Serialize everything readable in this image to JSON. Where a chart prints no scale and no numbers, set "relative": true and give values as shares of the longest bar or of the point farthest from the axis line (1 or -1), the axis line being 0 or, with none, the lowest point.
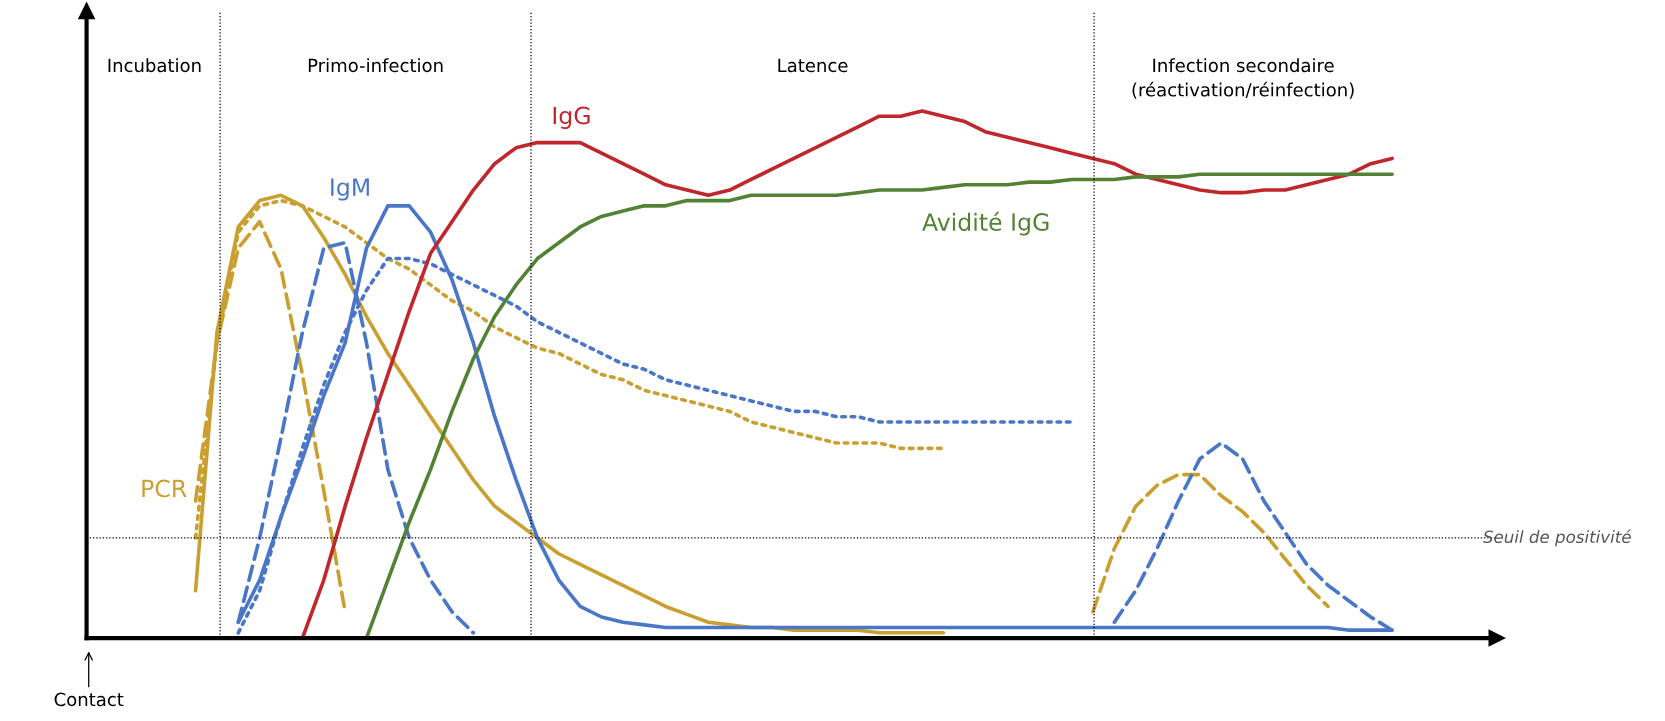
{
  "chart_data": {
    "type": "line",
    "relative": true,
    "grid": false,
    "legend": false,
    "marker": "none",
    "categories": [
      null,
      null,
      null,
      null,
      null,
      null,
      null,
      null,
      null,
      null,
      null,
      null,
      null,
      null,
      null,
      null,
      null,
      null,
      null,
      null,
      null,
      null,
      null,
      null,
      null,
      null,
      null,
      null,
      null,
      null,
      null,
      null,
      null,
      null,
      null,
      null,
      null,
      null,
      null,
      null,
      null,
      null,
      null,
      null,
      null,
      null,
      null,
      null,
      null,
      null,
      null,
      null,
      null,
      null,
      null,
      null,
      null,
      null,
      null,
      null,
      null,
      null
    ],
    "series": [
      {
        "name": "PCR",
        "color": "#c9a030",
        "line_style": "solid",
        "values": [
          null,
          null,
          null,
          null,
          null,
          0.09,
          0.58,
          0.78,
          0.83,
          0.84,
          0.82,
          0.76,
          0.69,
          0.61,
          0.54,
          0.48,
          0.42,
          0.36,
          0.3,
          0.25,
          0.22,
          0.19,
          0.16,
          0.14,
          0.12,
          0.1,
          0.08,
          0.06,
          0.045,
          0.03,
          0.025,
          0.02,
          0.02,
          0.015,
          0.015,
          0.015,
          0.015,
          0.01,
          0.01,
          0.01,
          0.01,
          null,
          null,
          null,
          null,
          null,
          null,
          null,
          null,
          null,
          null,
          null,
          null,
          null,
          null,
          null,
          null,
          null,
          null,
          null,
          null,
          null
        ]
      },
      {
        "color": "#c9a030",
        "line_style": "dashed",
        "values": [
          null,
          null,
          null,
          null,
          null,
          0.26,
          0.56,
          0.74,
          0.79,
          0.7,
          0.5,
          0.28,
          0.05,
          null,
          null,
          null,
          null,
          null,
          null,
          null,
          null,
          null,
          null,
          null,
          null,
          null,
          null,
          null,
          null,
          null,
          null,
          null,
          null,
          null,
          null,
          null,
          null,
          null,
          null,
          null,
          null,
          null,
          null,
          null,
          null,
          null,
          null,
          0.05,
          0.17,
          0.25,
          0.29,
          0.31,
          0.31,
          0.27,
          0.24,
          0.2,
          0.15,
          0.1,
          0.06,
          null,
          null,
          null
        ]
      },
      {
        "color": "#c9a030",
        "line_style": "dotted",
        "values": [
          null,
          null,
          null,
          null,
          null,
          0.19,
          0.56,
          0.77,
          0.82,
          0.83,
          0.82,
          0.8,
          0.78,
          0.75,
          0.72,
          0.7,
          0.67,
          0.64,
          0.62,
          0.59,
          0.57,
          0.55,
          0.54,
          0.52,
          0.5,
          0.49,
          0.47,
          0.46,
          0.45,
          0.44,
          0.43,
          0.41,
          0.4,
          0.39,
          0.38,
          0.37,
          0.37,
          0.37,
          0.36,
          0.36,
          0.36,
          null,
          null,
          null,
          null,
          null,
          null,
          null,
          null,
          null,
          null,
          null,
          null,
          null,
          null,
          null,
          null,
          null,
          null,
          null,
          null,
          null
        ]
      },
      {
        "name": "IgM",
        "color": "#4a76c8",
        "line_style": "solid",
        "values": [
          null,
          null,
          null,
          null,
          null,
          null,
          null,
          0.03,
          0.11,
          0.23,
          0.34,
          0.46,
          0.56,
          0.74,
          0.82,
          0.82,
          0.77,
          0.68,
          0.56,
          0.42,
          0.3,
          0.19,
          0.11,
          0.06,
          0.04,
          0.03,
          0.025,
          0.02,
          0.02,
          0.02,
          0.02,
          0.02,
          0.02,
          0.02,
          0.02,
          0.02,
          0.02,
          0.02,
          0.02,
          0.02,
          0.02,
          0.02,
          0.02,
          0.02,
          0.02,
          0.02,
          0.02,
          0.02,
          0.02,
          0.02,
          0.02,
          0.02,
          0.02,
          0.02,
          0.02,
          0.02,
          0.02,
          0.02,
          0.02,
          0.015,
          0.015,
          0.015
        ]
      },
      {
        "color": "#4a76c8",
        "line_style": "dashed",
        "values": [
          null,
          null,
          null,
          null,
          null,
          null,
          null,
          0.03,
          0.19,
          0.38,
          0.58,
          0.74,
          0.75,
          0.56,
          0.32,
          0.19,
          0.11,
          0.05,
          0.01,
          null,
          null,
          null,
          null,
          null,
          null,
          null,
          null,
          null,
          null,
          null,
          null,
          null,
          null,
          null,
          null,
          null,
          null,
          null,
          null,
          null,
          null,
          null,
          null,
          null,
          null,
          null,
          null,
          null,
          0.03,
          0.09,
          0.17,
          0.26,
          0.34,
          0.37,
          0.34,
          0.26,
          0.2,
          0.14,
          0.1,
          0.07,
          0.04,
          0.015
        ]
      },
      {
        "color": "#4a76c8",
        "line_style": "dotted",
        "values": [
          null,
          null,
          null,
          null,
          null,
          null,
          null,
          0.01,
          0.09,
          0.23,
          0.36,
          0.48,
          0.58,
          0.66,
          0.72,
          0.72,
          0.71,
          0.69,
          0.67,
          0.65,
          0.63,
          0.6,
          0.58,
          0.56,
          0.54,
          0.52,
          0.51,
          0.49,
          0.48,
          0.47,
          0.46,
          0.45,
          0.44,
          0.43,
          0.43,
          0.42,
          0.42,
          0.41,
          0.41,
          0.41,
          0.41,
          0.41,
          0.41,
          0.41,
          0.41,
          0.41,
          0.41,
          null,
          null,
          null,
          null,
          null,
          null,
          null,
          null,
          null,
          null,
          null,
          null,
          null,
          null,
          null
        ]
      },
      {
        "name": "IgG",
        "color": "#c0272d",
        "line_style": "solid",
        "values": [
          null,
          null,
          null,
          null,
          null,
          null,
          null,
          null,
          null,
          null,
          0,
          0.11,
          0.25,
          0.38,
          0.5,
          0.62,
          0.73,
          0.79,
          0.85,
          0.9,
          0.93,
          0.94,
          0.94,
          0.94,
          0.92,
          0.9,
          0.88,
          0.86,
          0.85,
          0.84,
          0.85,
          0.87,
          0.89,
          0.91,
          0.93,
          0.95,
          0.97,
          0.99,
          0.99,
          1,
          0.99,
          0.98,
          0.96,
          0.95,
          0.94,
          0.93,
          0.92,
          0.91,
          0.9,
          0.88,
          0.87,
          0.86,
          0.85,
          0.845,
          0.845,
          0.85,
          0.85,
          0.86,
          0.87,
          0.88,
          0.9,
          0.91
        ]
      },
      {
        "name": "Avidité IgG",
        "color": "#548235",
        "line_style": "solid",
        "values": [
          null,
          null,
          null,
          null,
          null,
          null,
          null,
          null,
          null,
          null,
          null,
          null,
          null,
          0,
          0.11,
          0.22,
          0.32,
          0.43,
          0.53,
          0.61,
          0.67,
          0.72,
          0.75,
          0.78,
          0.8,
          0.81,
          0.82,
          0.82,
          0.83,
          0.83,
          0.83,
          0.84,
          0.84,
          0.84,
          0.84,
          0.84,
          0.845,
          0.85,
          0.85,
          0.85,
          0.855,
          0.86,
          0.86,
          0.86,
          0.865,
          0.865,
          0.87,
          0.87,
          0.87,
          0.875,
          0.875,
          0.875,
          0.88,
          0.88,
          0.88,
          0.88,
          0.88,
          0.88,
          0.88,
          0.88,
          0.88,
          0.88
        ]
      }
    ],
    "ref_lines": [
      {
        "axis": "y",
        "value": 0.19,
        "label": "Seuil de positivité",
        "line_style": "dotted",
        "color": "#000000"
      }
    ],
    "annotations": [
      "Incubation",
      "Primo-infection",
      "Latence",
      "Infection secondaire\n(réactivation/réinfection)",
      "Contact"
    ]
  }
}
